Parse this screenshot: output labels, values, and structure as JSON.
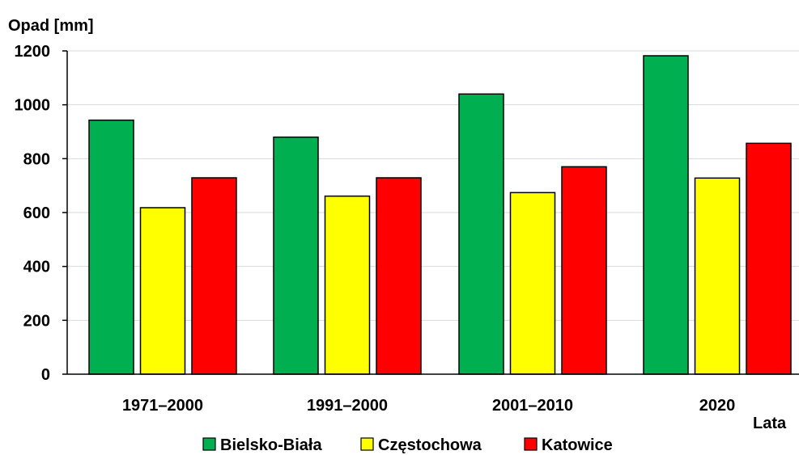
{
  "chart_data": {
    "type": "bar",
    "ylabel": "Opad [mm]",
    "xlabel": "Lata",
    "categories": [
      "1971–2000",
      "1991–2000",
      "2001–2010",
      "2020"
    ],
    "series": [
      {
        "name": "Bielsko-Biała",
        "color": "#00b050",
        "values": [
          943,
          880,
          1040,
          1182
        ]
      },
      {
        "name": "Częstochowa",
        "color": "#ffff00",
        "values": [
          618,
          661,
          674,
          728
        ]
      },
      {
        "name": "Katowice",
        "color": "#ff0000",
        "values": [
          729,
          729,
          770,
          857
        ]
      }
    ],
    "ylim": [
      0,
      1200
    ],
    "yticks": [
      0,
      200,
      400,
      600,
      800,
      1000,
      1200
    ],
    "grid": true,
    "legend_position": "bottom"
  }
}
